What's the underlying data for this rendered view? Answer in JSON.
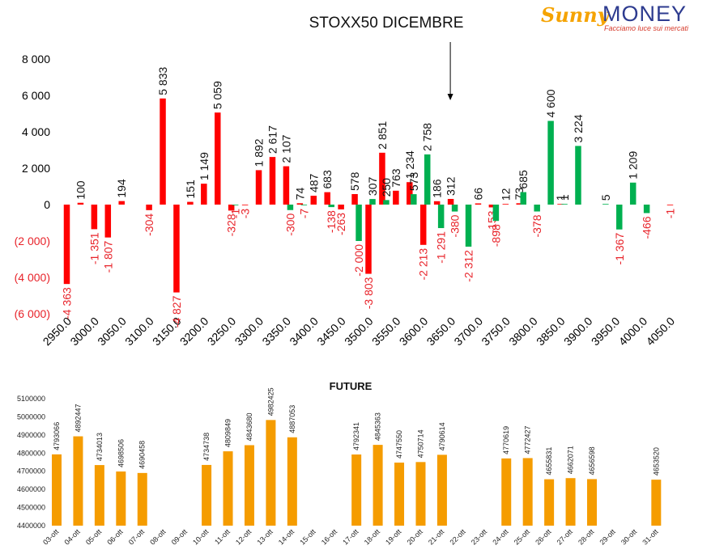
{
  "logo": {
    "brand_a": "Sunny",
    "brand_b": "MONEY",
    "tagline": "Facciamo luce sui mercati"
  },
  "colors": {
    "positive": "#00b050",
    "negative": "#ff0000",
    "future_bar": "#f59c00",
    "neg_label": "#e8232a"
  },
  "chart_data": [
    {
      "type": "bar",
      "title": "STOXX50 DICEMBRE",
      "ylim": [
        -6000,
        8000
      ],
      "yticks": [
        {
          "v": 8000,
          "t": "8 000"
        },
        {
          "v": 6000,
          "t": "6 000"
        },
        {
          "v": 4000,
          "t": "4 000"
        },
        {
          "v": 2000,
          "t": "2 000"
        },
        {
          "v": 0,
          "t": "0"
        },
        {
          "v": -2000,
          "t": "(2 000)"
        },
        {
          "v": -4000,
          "t": "(4 000)"
        },
        {
          "v": -6000,
          "t": "(6 000)"
        }
      ],
      "x_ticks": [
        "2950.0",
        "3000.0",
        "3050.0",
        "3100.0",
        "3150.0",
        "3200.0",
        "3250.0",
        "3300.0",
        "3350.0",
        "3400.0",
        "3450.0",
        "3500.0",
        "3550.0",
        "3600.0",
        "3650.0",
        "3700.0",
        "3750.0",
        "3800.0",
        "3850.0",
        "3900.0",
        "3950.0",
        "4000.0",
        "4050.0"
      ],
      "strikes": [
        "2950",
        "2975",
        "3000",
        "3025",
        "3050",
        "3075",
        "3100",
        "3125",
        "3150",
        "3175",
        "3200",
        "3225",
        "3250",
        "3275",
        "3300",
        "3325",
        "3350",
        "3375",
        "3400",
        "3425",
        "3450",
        "3475",
        "3500",
        "3525",
        "3550",
        "3575",
        "3600",
        "3625",
        "3650",
        "3675",
        "3700",
        "3725",
        "3750",
        "3775",
        "3800",
        "3825",
        "3850",
        "3875",
        "3900",
        "3925",
        "3950",
        "3975",
        "4000",
        "4025",
        "4050"
      ],
      "annotation": {
        "type": "arrow",
        "strike": "3650"
      },
      "series": [
        {
          "color": "red",
          "values": [
            -4363,
            100,
            -1351,
            -1807,
            194,
            null,
            -304,
            5833,
            -4827,
            151,
            1149,
            5059,
            -328,
            -3,
            1892,
            2617,
            2107,
            74,
            487,
            683,
            -263,
            578,
            -3803,
            2851,
            763,
            1234,
            -2213,
            186,
            312,
            null,
            66,
            -153,
            12,
            73,
            null,
            null,
            1,
            null,
            null,
            null,
            null,
            null,
            null,
            null,
            -1
          ],
          "labels": [
            "-4 363",
            "100",
            "-1 351",
            "-1 807",
            "194",
            "",
            "-304",
            "5 833",
            "-4 827",
            "151",
            "1 149",
            "5 059",
            "-328",
            "-3",
            "1 892",
            "2 617",
            "2 107",
            "74",
            "487",
            "683",
            "-263",
            "578",
            "-3 803",
            "2 851",
            "763",
            "1 234",
            "-2 213",
            "186",
            "312",
            "",
            "66",
            "-153",
            "12",
            "73",
            "",
            "",
            "1",
            "",
            "",
            "",
            "",
            "",
            "",
            "",
            "-1"
          ]
        },
        {
          "color": "green",
          "values": [
            null,
            null,
            null,
            null,
            null,
            null,
            null,
            null,
            null,
            null,
            null,
            null,
            -1,
            null,
            null,
            null,
            -300,
            -7,
            null,
            -138,
            null,
            -2000,
            307,
            250,
            null,
            573,
            2758,
            -1291,
            -380,
            -2312,
            null,
            -898,
            null,
            685,
            -378,
            4600,
            1,
            3224,
            null,
            5,
            -1367,
            1209,
            -466,
            null,
            null
          ],
          "labels": [
            "",
            "",
            "",
            "",
            "",
            "",
            "",
            "",
            "",
            "",
            "",
            "",
            "-1",
            "",
            "",
            "",
            "-300",
            "-7",
            "",
            "-138",
            "",
            "-2 000",
            "307",
            "250",
            "",
            "573",
            "2 758",
            "-1 291",
            "-380",
            "-2 312",
            "",
            "-898",
            "",
            "685",
            "-378",
            "4 600",
            "1",
            "3 224",
            "",
            "5",
            "-1 367",
            "1 209",
            "-466",
            "",
            ""
          ]
        }
      ]
    },
    {
      "type": "bar",
      "title": "FUTURE",
      "ylim": [
        4400000,
        5100000
      ],
      "yticks": [
        "5100000",
        "5000000",
        "4900000",
        "4800000",
        "4700000",
        "4600000",
        "4500000",
        "4400000"
      ],
      "categories": [
        "03-ott",
        "04-ott",
        "05-ott",
        "06-ott",
        "07-ott",
        "08-ott",
        "09-ott",
        "10-ott",
        "11-ott",
        "12-ott",
        "13-ott",
        "14-ott",
        "15-ott",
        "16-ott",
        "17-ott",
        "18-ott",
        "19-ott",
        "20-ott",
        "21-ott",
        "22-ott",
        "23-ott",
        "24-ott",
        "25-ott",
        "26-ott",
        "27-ott",
        "28-ott",
        "29-ott",
        "30-ott",
        "31-ott"
      ],
      "values": [
        4793066,
        4892447,
        4734013,
        4698506,
        4690458,
        null,
        null,
        4734738,
        4809849,
        4843680,
        4982425,
        4887053,
        null,
        null,
        4792341,
        4845363,
        4747550,
        4750714,
        4790614,
        null,
        null,
        4770619,
        4772427,
        4655831,
        4662071,
        4656598,
        null,
        null,
        4653520
      ],
      "labels": [
        "4793066",
        "4892447",
        "4734013",
        "4698506",
        "4690458",
        "",
        "",
        "4734738",
        "4809849",
        "4843680",
        "4982425",
        "4887053",
        "",
        "",
        "4792341",
        "4845363",
        "4747550",
        "4750714",
        "4790614",
        "",
        "",
        "4770619",
        "4772427",
        "4655831",
        "4662071",
        "4656598",
        "",
        "",
        "4653520"
      ]
    }
  ]
}
